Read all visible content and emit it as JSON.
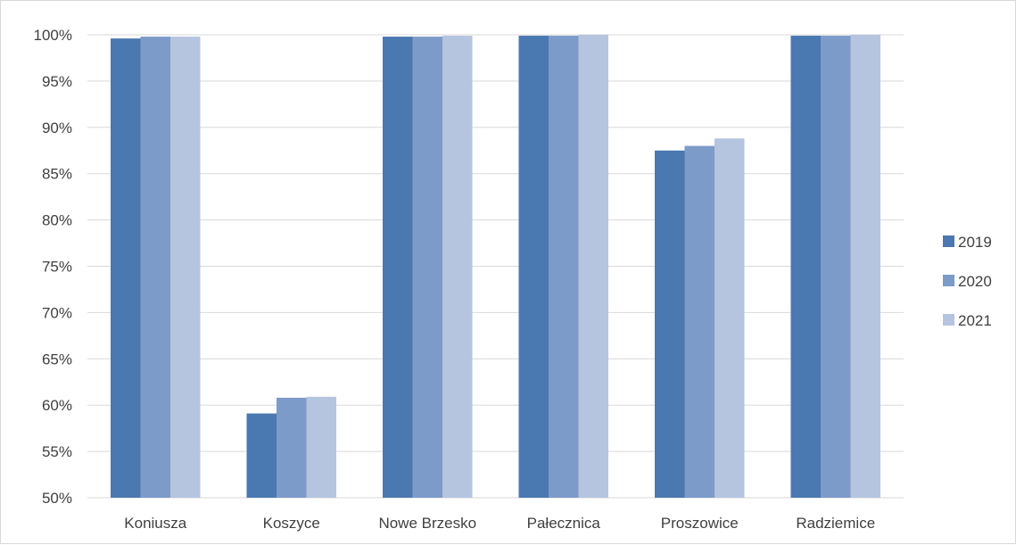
{
  "chart_data": {
    "type": "bar",
    "title": "",
    "xlabel": "",
    "ylabel": "",
    "categories": [
      "Koniusza",
      "Koszyce",
      "Nowe Brzesko",
      "Pałecznica",
      "Proszowice",
      "Radziemice"
    ],
    "series": [
      {
        "name": "2019",
        "color": "#4a78b0",
        "values": [
          99.6,
          59.1,
          99.8,
          99.9,
          87.5,
          99.9
        ]
      },
      {
        "name": "2020",
        "color": "#7d9bc8",
        "values": [
          99.8,
          60.8,
          99.8,
          99.9,
          88.0,
          99.9
        ]
      },
      {
        "name": "2021",
        "color": "#b5c4df",
        "values": [
          99.8,
          60.9,
          99.9,
          100.0,
          88.8,
          100.0
        ]
      }
    ],
    "ylim": [
      50,
      100
    ],
    "yticks": [
      50,
      55,
      60,
      65,
      70,
      75,
      80,
      85,
      90,
      95,
      100
    ],
    "ytick_labels": [
      "50%",
      "55%",
      "60%",
      "65%",
      "70%",
      "75%",
      "80%",
      "85%",
      "90%",
      "95%",
      "100%"
    ],
    "grid": true,
    "legend_position": "right"
  },
  "colors": {
    "gridline": "#d9d9d9",
    "axis_text": "#404040"
  }
}
